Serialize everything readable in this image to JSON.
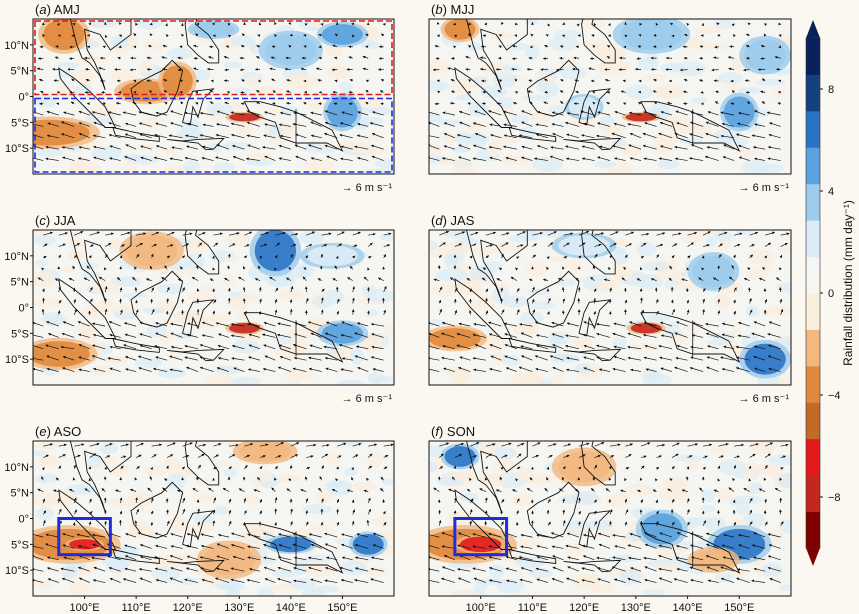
{
  "chart_data": {
    "type": "heatmap",
    "colorbar": {
      "label": "Rainfall distribution (mm day⁻¹)",
      "ticks": [
        8,
        4,
        0,
        -4,
        -8
      ],
      "range": [
        -10,
        10
      ],
      "extend": "both",
      "colors": [
        "#800000",
        "#c4271e",
        "#e31a1c",
        "#c36a26",
        "#e0893c",
        "#f2b880",
        "#faeedd",
        "#f5f5f1",
        "#dbecf6",
        "#9ccbec",
        "#5aa1de",
        "#2b74c5",
        "#14417f",
        "#08215a"
      ]
    },
    "reference_vector": "→  6 m s⁻¹",
    "lat_ticks": [
      "10°N",
      "5°N",
      "0°",
      "5°S",
      "10°S"
    ],
    "lon_ticks": [
      "100°E",
      "110°E",
      "120°E",
      "130°E",
      "140°E",
      "150°E"
    ],
    "lon_range": [
      90,
      160
    ],
    "lat_range": [
      -15,
      15
    ],
    "panels": [
      {
        "tag": "(a)",
        "season": "AMJ",
        "show_lat": true,
        "show_lon": false,
        "show_ref": true,
        "boxes": [
          {
            "color": "#e31a1c",
            "dashed": true,
            "lon": [
              90,
              160
            ],
            "lat": [
              0,
              15
            ]
          },
          {
            "color": "#1f2be0",
            "dashed": true,
            "lon": [
              90,
              160
            ],
            "lat": [
              -15,
              0
            ]
          }
        ]
      },
      {
        "tag": "(b)",
        "season": "MJJ",
        "show_lat": false,
        "show_lon": false,
        "show_ref": true,
        "boxes": []
      },
      {
        "tag": "(c)",
        "season": "JJA",
        "show_lat": true,
        "show_lon": false,
        "show_ref": true,
        "boxes": []
      },
      {
        "tag": "(d)",
        "season": "JAS",
        "show_lat": false,
        "show_lon": false,
        "show_ref": true,
        "boxes": []
      },
      {
        "tag": "(e)",
        "season": "ASO",
        "show_lat": true,
        "show_lon": true,
        "show_ref": false,
        "boxes": [
          {
            "color": "#1f2be0",
            "dashed": false,
            "lon": [
              95,
              105
            ],
            "lat": [
              -7,
              0
            ]
          }
        ]
      },
      {
        "tag": "(f)",
        "season": "SON",
        "show_lat": false,
        "show_lon": true,
        "show_ref": false,
        "boxes": [
          {
            "color": "#1f2be0",
            "dashed": false,
            "lon": [
              95,
              105
            ],
            "lat": [
              -7,
              0
            ]
          }
        ]
      }
    ]
  }
}
